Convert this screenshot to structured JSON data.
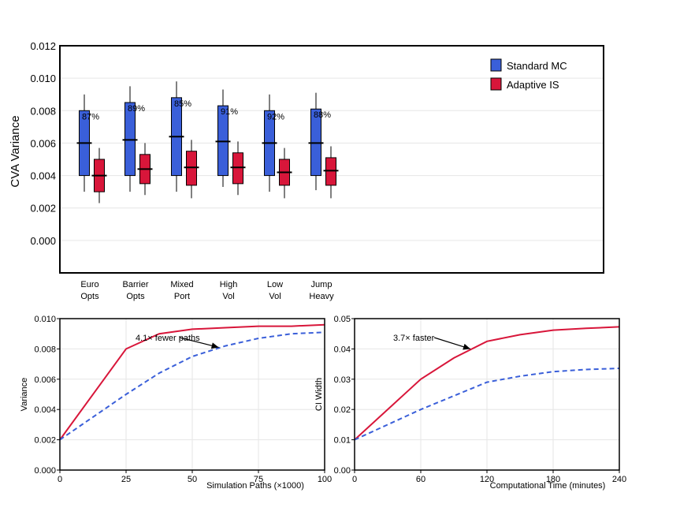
{
  "chart_data": [
    {
      "type": "box",
      "ylabel": "CVA Variance",
      "ylim": [
        -0.002,
        0.012
      ],
      "yticks": [
        "0.012",
        "0.010",
        "0.008",
        "0.006",
        "0.004",
        "0.002",
        "0.000"
      ],
      "ytick_values": [
        0.012,
        0.01,
        0.008,
        0.006,
        0.004,
        0.002,
        0.0
      ],
      "grid": true,
      "legend_position": "top-right",
      "categories": [
        [
          "Euro",
          "Opts"
        ],
        [
          "Barrier",
          "Opts"
        ],
        [
          "Mixed",
          "Port"
        ],
        [
          "High",
          "Vol"
        ],
        [
          "Low",
          "Vol"
        ],
        [
          "Jump",
          "Heavy"
        ]
      ],
      "series": [
        {
          "name": "Standard MC",
          "color": "#3a5fd9",
          "boxes": [
            {
              "whisker_low": 0.003,
              "q1": 0.004,
              "median": 0.006,
              "q3": 0.008,
              "whisker_high": 0.009
            },
            {
              "whisker_low": 0.003,
              "q1": 0.004,
              "median": 0.0062,
              "q3": 0.0085,
              "whisker_high": 0.0095
            },
            {
              "whisker_low": 0.003,
              "q1": 0.004,
              "median": 0.0064,
              "q3": 0.0088,
              "whisker_high": 0.0098
            },
            {
              "whisker_low": 0.0033,
              "q1": 0.004,
              "median": 0.0061,
              "q3": 0.0083,
              "whisker_high": 0.0093
            },
            {
              "whisker_low": 0.003,
              "q1": 0.004,
              "median": 0.006,
              "q3": 0.008,
              "whisker_high": 0.009
            },
            {
              "whisker_low": 0.0031,
              "q1": 0.004,
              "median": 0.006,
              "q3": 0.0081,
              "whisker_high": 0.0091
            }
          ]
        },
        {
          "name": "Adaptive IS",
          "color": "#d8163a",
          "boxes": [
            {
              "whisker_low": 0.0023,
              "q1": 0.003,
              "median": 0.004,
              "q3": 0.005,
              "whisker_high": 0.0057
            },
            {
              "whisker_low": 0.0028,
              "q1": 0.0035,
              "median": 0.0044,
              "q3": 0.0053,
              "whisker_high": 0.006
            },
            {
              "whisker_low": 0.0026,
              "q1": 0.0034,
              "median": 0.0045,
              "q3": 0.0055,
              "whisker_high": 0.0062
            },
            {
              "whisker_low": 0.0028,
              "q1": 0.0035,
              "median": 0.0045,
              "q3": 0.0054,
              "whisker_high": 0.0061
            },
            {
              "whisker_low": 0.0026,
              "q1": 0.0034,
              "median": 0.0042,
              "q3": 0.005,
              "whisker_high": 0.0057
            },
            {
              "whisker_low": 0.0026,
              "q1": 0.0034,
              "median": 0.0043,
              "q3": 0.0051,
              "whisker_high": 0.0058
            }
          ]
        }
      ],
      "annotations": [
        "87%",
        "89%",
        "85%",
        "91%",
        "92%",
        "88%"
      ]
    },
    {
      "type": "line",
      "xlabel": "Simulation Paths (×1000)",
      "ylabel": "Variance",
      "xlim": [
        0,
        100
      ],
      "ylim": [
        0.0,
        0.01
      ],
      "xticks": [
        "0",
        "25",
        "50",
        "75",
        "100"
      ],
      "xtick_values": [
        0,
        25,
        50,
        75,
        100
      ],
      "yticks": [
        "0.000",
        "0.002",
        "0.004",
        "0.006",
        "0.008",
        "0.010"
      ],
      "ytick_values": [
        0.0,
        0.002,
        0.004,
        0.006,
        0.008,
        0.01
      ],
      "grid": true,
      "series": [
        {
          "color": "#d8163a",
          "style": "solid",
          "x": [
            0,
            25,
            37.5,
            50,
            62.5,
            75,
            87.5,
            100
          ],
          "y": [
            0.002,
            0.008,
            0.009,
            0.0093,
            0.0094,
            0.0095,
            0.0095,
            0.0096
          ]
        },
        {
          "color": "#3a5fd9",
          "style": "dashed",
          "x": [
            0,
            12.5,
            25,
            37.5,
            50,
            62.5,
            75,
            87.5,
            100
          ],
          "y": [
            0.002,
            0.0035,
            0.005,
            0.0064,
            0.0075,
            0.0082,
            0.0087,
            0.009,
            0.0091
          ]
        }
      ],
      "annotation": {
        "text": "4.1× fewer paths",
        "arrow_to": [
          60,
          0.0081
        ]
      }
    },
    {
      "type": "line",
      "xlabel": "Computational Time (minutes)",
      "ylabel": "CI Width",
      "xlim": [
        0,
        240
      ],
      "ylim": [
        0.0,
        0.05
      ],
      "xticks": [
        "0",
        "60",
        "120",
        "180",
        "240"
      ],
      "xtick_values": [
        0,
        60,
        120,
        180,
        240
      ],
      "yticks": [
        "0.00",
        "0.01",
        "0.02",
        "0.03",
        "0.04",
        "0.05"
      ],
      "ytick_values": [
        0.0,
        0.01,
        0.02,
        0.03,
        0.04,
        0.05
      ],
      "grid": true,
      "series": [
        {
          "color": "#d8163a",
          "style": "solid",
          "x": [
            0,
            60,
            90,
            120,
            150,
            180,
            210,
            240
          ],
          "y": [
            0.01,
            0.03,
            0.037,
            0.0425,
            0.0447,
            0.0462,
            0.0468,
            0.0473
          ]
        },
        {
          "color": "#3a5fd9",
          "style": "dashed",
          "x": [
            0,
            60,
            120,
            150,
            180,
            210,
            240
          ],
          "y": [
            0.01,
            0.02,
            0.029,
            0.031,
            0.0325,
            0.0332,
            0.0336
          ]
        }
      ],
      "annotation": {
        "text": "3.7× faster",
        "arrow_to": [
          105,
          0.04
        ]
      }
    }
  ]
}
